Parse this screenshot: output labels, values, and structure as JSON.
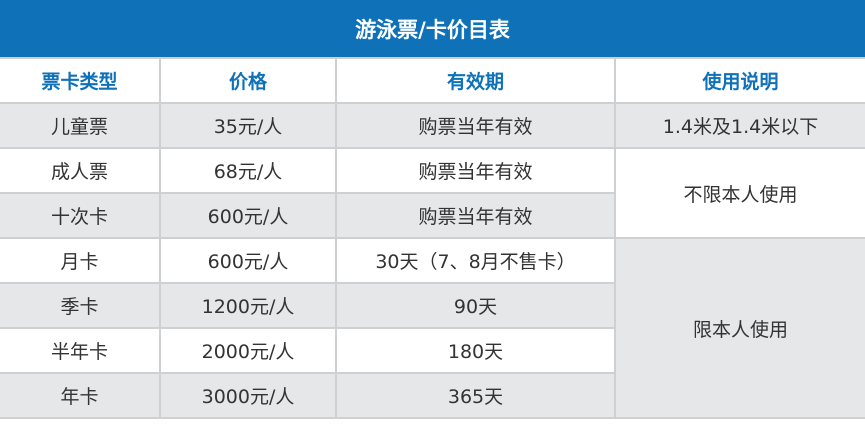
{
  "title": "游泳票/卡价目表",
  "colors": {
    "header_bg": "#0f71b8",
    "header_text": "#0f71b8",
    "row_gray": "#e6e7e9",
    "border": "#cfd0d2"
  },
  "columns": [
    "票卡类型",
    "价格",
    "有效期",
    "使用说明"
  ],
  "rows": [
    {
      "type": "儿童票",
      "price": "35元/人",
      "validity": "购票当年有效"
    },
    {
      "type": "成人票",
      "price": "68元/人",
      "validity": "购票当年有效"
    },
    {
      "type": "十次卡",
      "price": "600元/人",
      "validity": "购票当年有效"
    },
    {
      "type": "月卡",
      "price": "600元/人",
      "validity": "30天（7、8月不售卡）"
    },
    {
      "type": "季卡",
      "price": "1200元/人",
      "validity": "90天"
    },
    {
      "type": "半年卡",
      "price": "2000元/人",
      "validity": "180天"
    },
    {
      "type": "年卡",
      "price": "3000元/人",
      "validity": "365天"
    }
  ],
  "notes": [
    "1.4米及1.4米以下",
    "不限本人使用",
    "限本人使用"
  ]
}
